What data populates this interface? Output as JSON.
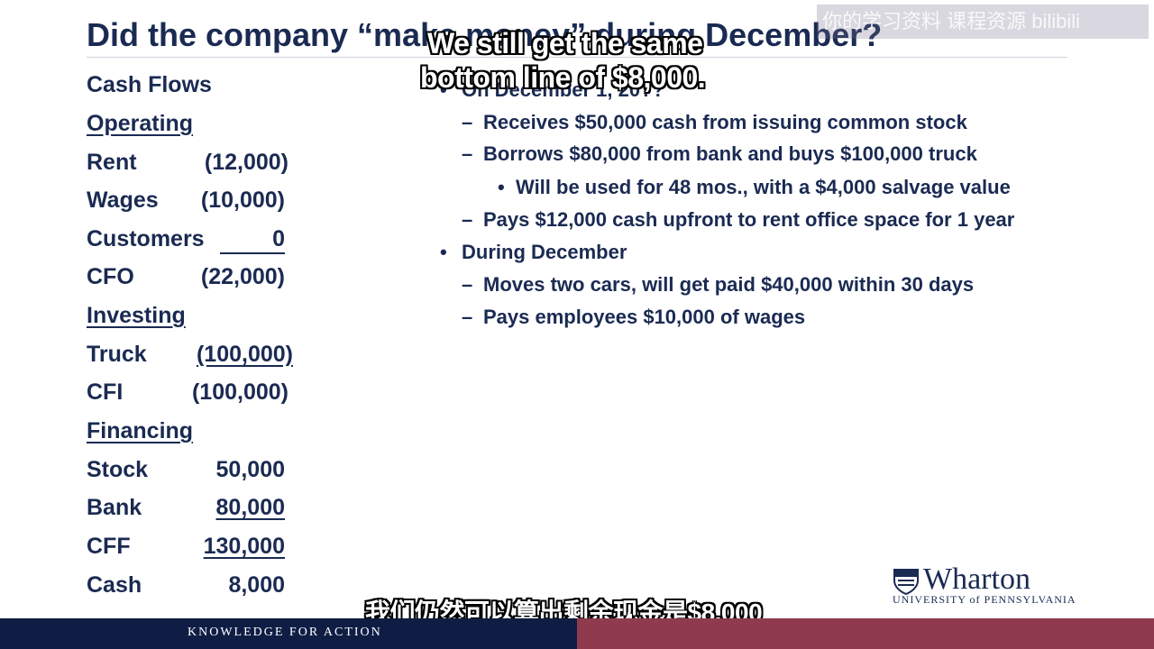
{
  "slide": {
    "title": "Did the company “make money” during December?",
    "watermark": "你的学习资料 课程资源 bilibili"
  },
  "cash_flows": {
    "heading": "Cash Flows",
    "operating": {
      "label": "Operating",
      "rent": {
        "label": "Rent",
        "value": "(12,000)"
      },
      "wages": {
        "label": "Wages",
        "value": "(10,000)"
      },
      "customers": {
        "label": "Customers",
        "value": "0"
      },
      "cfo": {
        "label": "CFO",
        "value": "(22,000)"
      }
    },
    "investing": {
      "label": "Investing",
      "truck": {
        "label": "Truck",
        "value": "(100,000)"
      },
      "cfi": {
        "label": "CFI",
        "value": "(100,000)"
      }
    },
    "financing": {
      "label": "Financing",
      "stock": {
        "label": "Stock",
        "value": "50,000"
      },
      "bank": {
        "label": "Bank",
        "value": "80,000"
      },
      "cff": {
        "label": "CFF",
        "value": "130,000"
      }
    },
    "cash": {
      "label": "Cash",
      "value": "8,000"
    }
  },
  "transactions": {
    "dec1": "On December 1, 20??",
    "stock": "Receives $50,000 cash from issuing common stock",
    "borrow": "Borrows $80,000 from bank and buys $100,000 truck",
    "truck_life": "Will be used for 48 mos., with a $4,000 salvage value",
    "rent": "Pays $12,000 cash upfront to rent office space for 1 year",
    "during": "During December",
    "cars": "Moves two cars, will get paid $40,000 within 30 days",
    "wages": "Pays employees $10,000 of wages"
  },
  "subtitles": {
    "en_line1": "We still get the same",
    "en_line2": "bottom line of $8,000.",
    "cn": "我们仍然可以算出剩余现金是$8,000"
  },
  "branding": {
    "wordmark": "Wharton",
    "university": "UNIVERSITY of PENNSYLVANIA",
    "tagline": "KNOWLEDGE FOR ACTION"
  },
  "colors": {
    "navy": "#1a2a52",
    "footer_navy": "#0f1d45",
    "footer_red": "#8f3a4d"
  }
}
